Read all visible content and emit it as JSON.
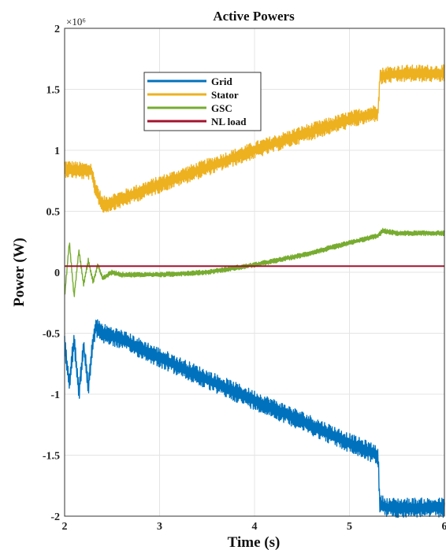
{
  "chart_data": {
    "type": "line",
    "title": "Active Powers",
    "xlabel": "Time (s)",
    "ylabel": "Power (W)",
    "y_exponent_label": "×10⁶",
    "xlim": [
      2,
      6
    ],
    "ylim": [
      -2,
      2
    ],
    "x_ticks": [
      "2",
      "3",
      "4",
      "5",
      "6"
    ],
    "y_ticks": [
      "-2",
      "-1.5",
      "-1",
      "-0.5",
      "0",
      "0.5",
      "1",
      "1.5",
      "2"
    ],
    "grid": true,
    "legend_position": "top-left-inner",
    "series": [
      {
        "name": "Grid",
        "color": "#0072BD",
        "noise": 0.08,
        "x": [
          2.0,
          2.05,
          2.1,
          2.15,
          2.2,
          2.25,
          2.3,
          2.33,
          2.4,
          2.6,
          3.0,
          3.5,
          4.0,
          4.5,
          5.0,
          5.3,
          5.32,
          5.4,
          5.6,
          6.0
        ],
        "y": [
          -0.6,
          -0.9,
          -0.55,
          -1.0,
          -0.6,
          -0.95,
          -0.55,
          -0.45,
          -0.5,
          -0.55,
          -0.7,
          -0.88,
          -1.05,
          -1.22,
          -1.4,
          -1.5,
          -1.9,
          -1.93,
          -1.93,
          -1.93
        ]
      },
      {
        "name": "Stator",
        "color": "#EDB120",
        "noise": 0.07,
        "x": [
          2.0,
          2.1,
          2.2,
          2.28,
          2.32,
          2.4,
          2.6,
          3.0,
          3.5,
          4.0,
          4.5,
          5.0,
          5.3,
          5.32,
          5.4,
          5.6,
          6.0
        ],
        "y": [
          0.85,
          0.84,
          0.83,
          0.83,
          0.7,
          0.55,
          0.6,
          0.72,
          0.86,
          1.0,
          1.13,
          1.25,
          1.31,
          1.6,
          1.62,
          1.63,
          1.63
        ]
      },
      {
        "name": "GSC",
        "color": "#77AC30",
        "noise": 0.02,
        "x": [
          2.0,
          2.05,
          2.1,
          2.15,
          2.2,
          2.25,
          2.3,
          2.35,
          2.4,
          2.5,
          2.6,
          3.0,
          3.5,
          4.0,
          4.5,
          5.0,
          5.3,
          5.35,
          5.5,
          6.0
        ],
        "y": [
          -0.2,
          0.25,
          -0.2,
          0.18,
          -0.1,
          0.1,
          -0.08,
          0.06,
          -0.05,
          0.0,
          -0.02,
          -0.02,
          0.0,
          0.06,
          0.14,
          0.24,
          0.3,
          0.34,
          0.32,
          0.32
        ]
      },
      {
        "name": "NL load",
        "color": "#A2142F",
        "noise": 0.0,
        "x": [
          2.0,
          6.0
        ],
        "y": [
          0.05,
          0.05
        ]
      }
    ]
  }
}
